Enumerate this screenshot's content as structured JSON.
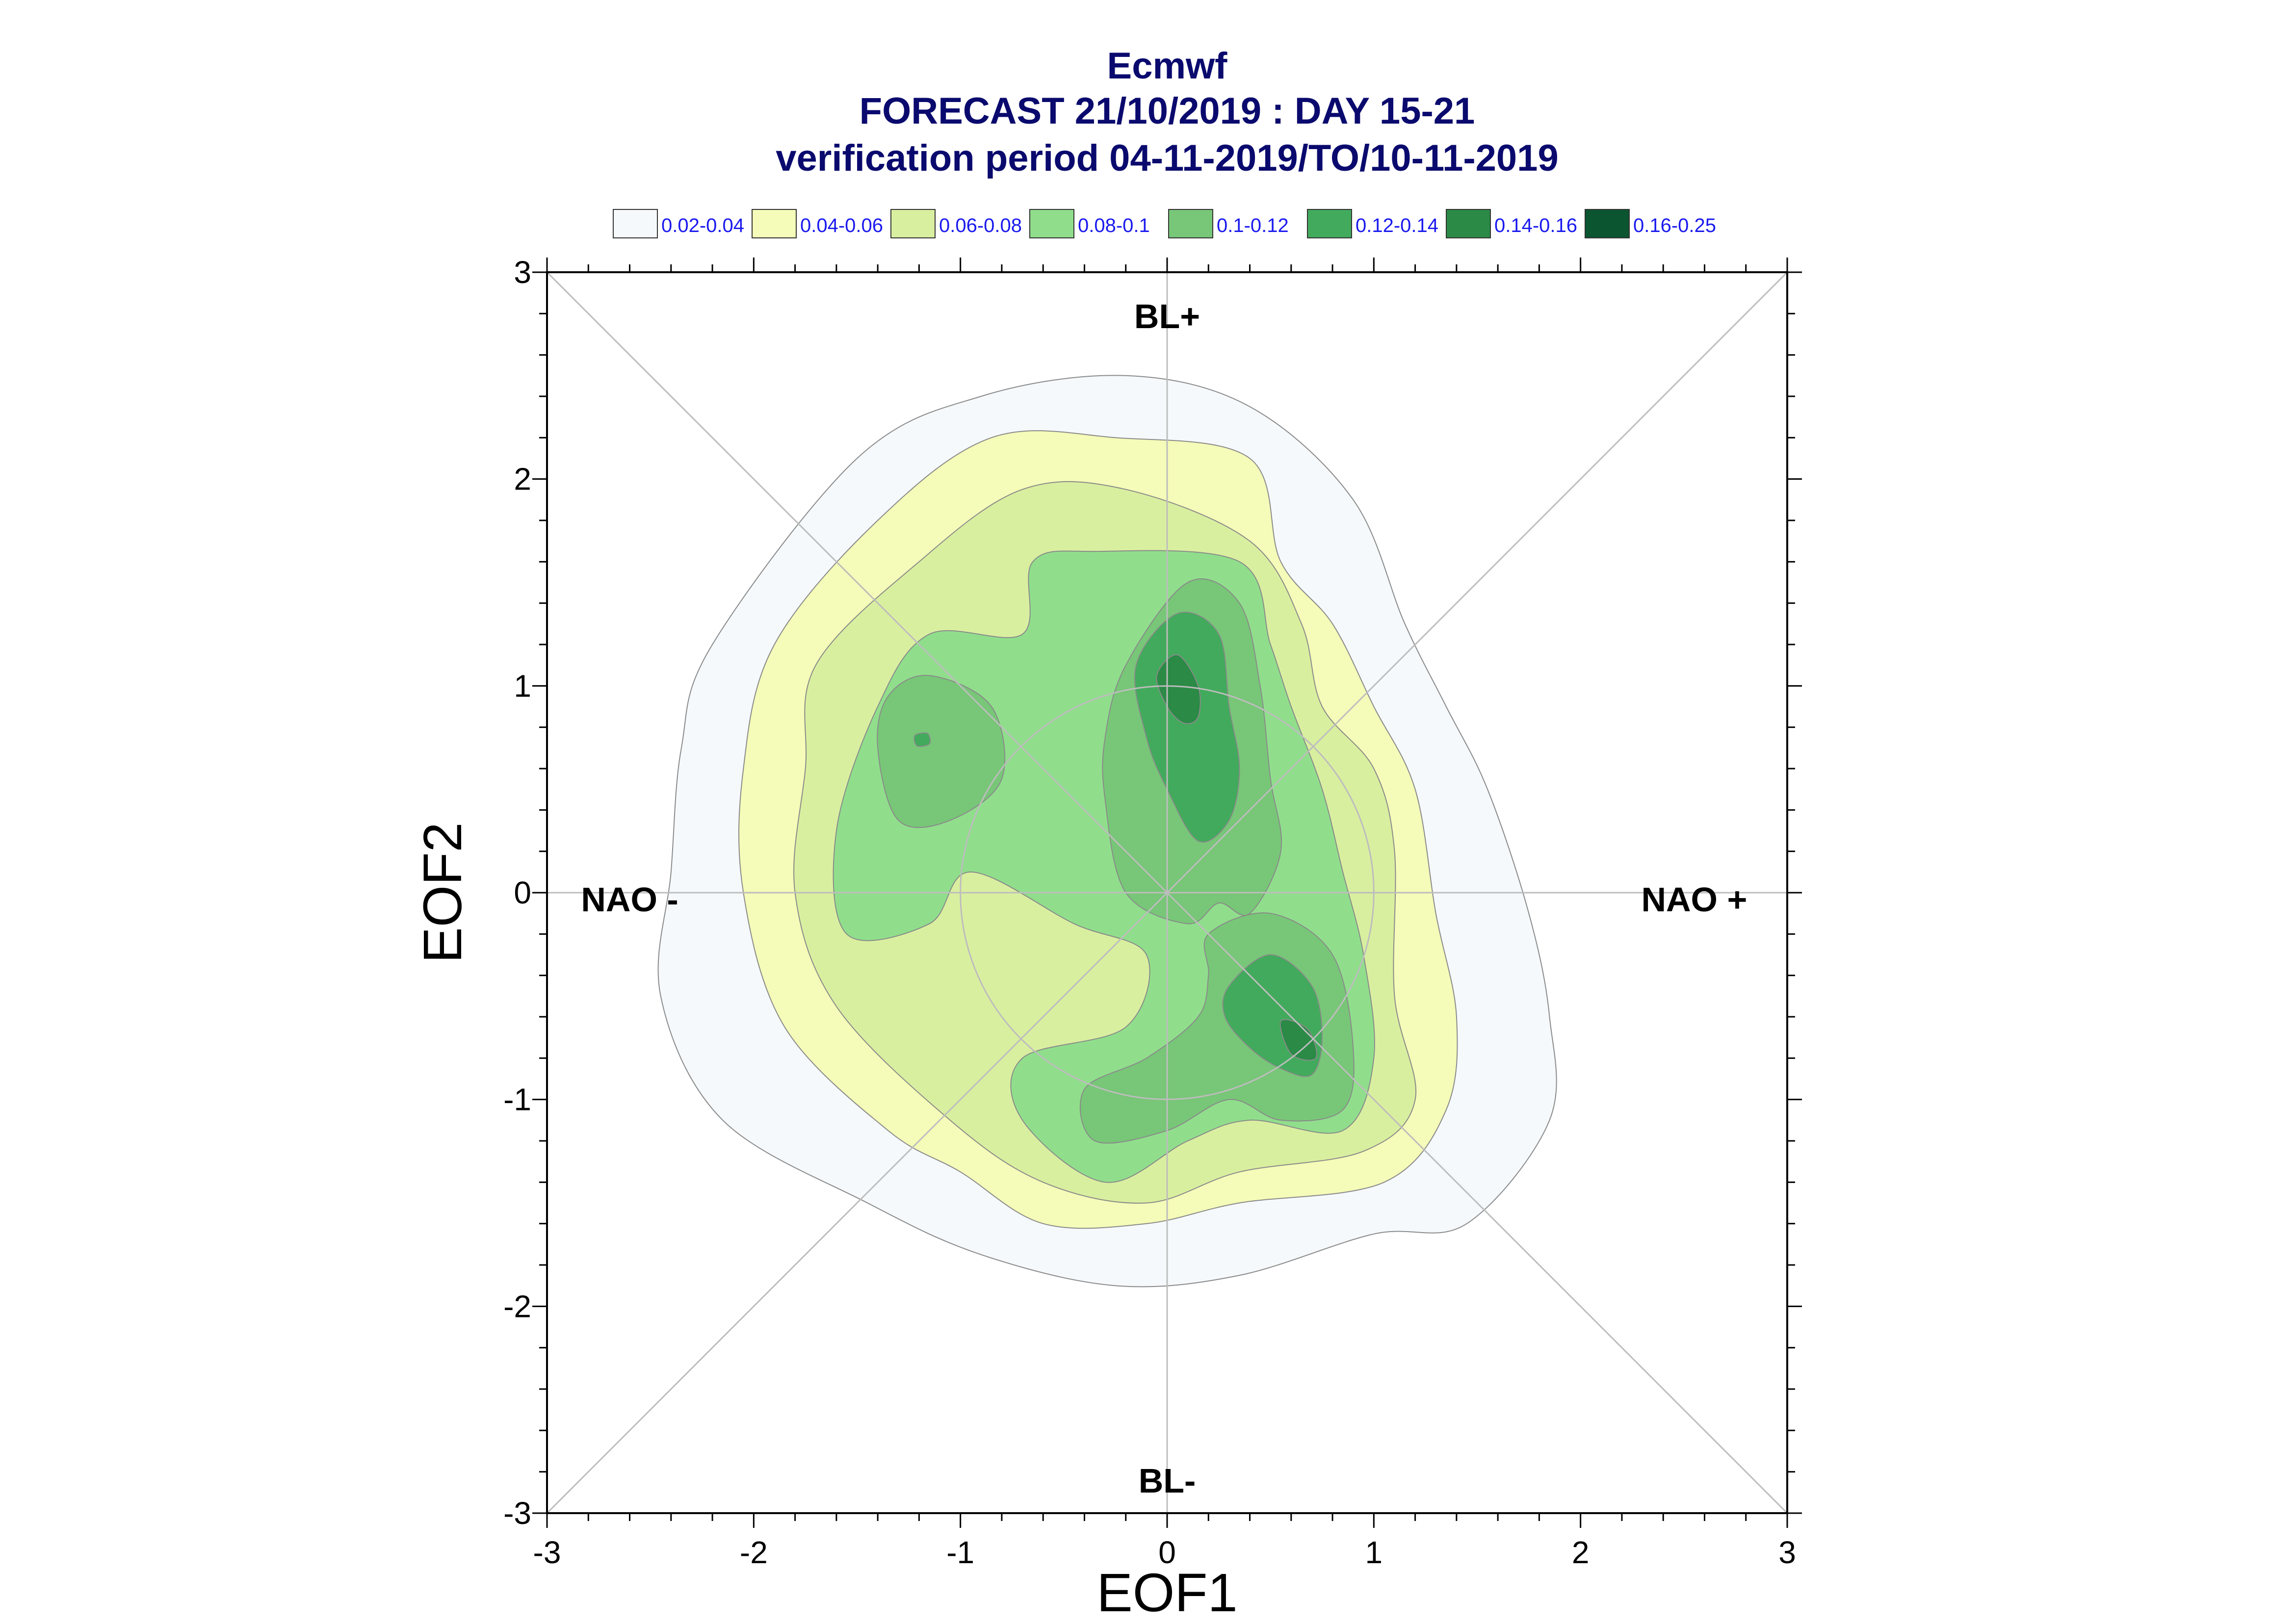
{
  "chart_data": {
    "type": "heatmap",
    "title_lines": [
      "Ecmwf",
      "FORECAST 21/10/2019 : DAY 15-21",
      "verification period 04-11-2019/TO/10-11-2019"
    ],
    "xlabel": "EOF1",
    "ylabel": "EOF2",
    "xlim": [
      -3,
      3
    ],
    "ylim": [
      -3,
      3
    ],
    "xticks": [
      -3,
      -2,
      -1,
      0,
      1,
      2,
      3
    ],
    "yticks": [
      -3,
      -2,
      -1,
      0,
      1,
      2,
      3
    ],
    "legend_placement": "top",
    "legend": [
      {
        "label": "0.02-0.04",
        "color": "#f5f9fc"
      },
      {
        "label": "0.04-0.06",
        "color": "#f5fbb8"
      },
      {
        "label": "0.06-0.08",
        "color": "#d9efa0"
      },
      {
        "label": "0.08-0.1",
        "color": "#90de8c"
      },
      {
        "label": "0.1-0.12",
        "color": "#78c678"
      },
      {
        "label": "0.12-0.14",
        "color": "#42aa5c"
      },
      {
        "label": "0.14-0.16",
        "color": "#2a8a46"
      },
      {
        "label": "0.16-0.25",
        "color": "#0b5530"
      }
    ],
    "annotations": [
      {
        "text": "BL+",
        "x": 0,
        "y": 2.73
      },
      {
        "text": "BL-",
        "x": 0,
        "y": -2.9
      },
      {
        "text": "NAO -",
        "x": -2.6,
        "y": -0.09
      },
      {
        "text": "NAO +",
        "x": 2.55,
        "y": -0.09
      }
    ],
    "reference_circle_radius": 1.0,
    "contours": [
      {
        "level": "0.02-0.04",
        "points": [
          [
            -2.2,
            1.2
          ],
          [
            -1.5,
            2.1
          ],
          [
            -0.9,
            2.4
          ],
          [
            -0.2,
            2.5
          ],
          [
            0.4,
            2.35
          ],
          [
            0.9,
            1.9
          ],
          [
            1.15,
            1.3
          ],
          [
            1.35,
            0.9
          ],
          [
            1.55,
            0.5
          ],
          [
            1.75,
            -0.1
          ],
          [
            1.85,
            -0.6
          ],
          [
            1.85,
            -1.1
          ],
          [
            1.45,
            -1.6
          ],
          [
            1.0,
            -1.65
          ],
          [
            0.35,
            -1.85
          ],
          [
            -0.25,
            -1.9
          ],
          [
            -0.9,
            -1.75
          ],
          [
            -1.45,
            -1.5
          ],
          [
            -2.15,
            -1.1
          ],
          [
            -2.45,
            -0.5
          ],
          [
            -2.4,
            0.1
          ],
          [
            -2.35,
            0.7
          ]
        ]
      },
      {
        "level": "0.04-0.06",
        "points": [
          [
            -1.9,
            1.2
          ],
          [
            -1.4,
            1.8
          ],
          [
            -0.85,
            2.2
          ],
          [
            -0.25,
            2.2
          ],
          [
            0.4,
            2.1
          ],
          [
            0.55,
            1.6
          ],
          [
            0.8,
            1.3
          ],
          [
            1.0,
            0.9
          ],
          [
            1.2,
            0.5
          ],
          [
            1.3,
            -0.1
          ],
          [
            1.4,
            -0.6
          ],
          [
            1.35,
            -1.05
          ],
          [
            1.05,
            -1.4
          ],
          [
            0.35,
            -1.5
          ],
          [
            -0.1,
            -1.6
          ],
          [
            -0.6,
            -1.6
          ],
          [
            -1.0,
            -1.35
          ],
          [
            -1.35,
            -1.15
          ],
          [
            -1.85,
            -0.65
          ],
          [
            -2.05,
            0
          ],
          [
            -2.05,
            0.6
          ]
        ]
      },
      {
        "level": "0.06-0.08",
        "points": [
          [
            -1.7,
            1.1
          ],
          [
            -1.2,
            1.6
          ],
          [
            -0.7,
            1.95
          ],
          [
            -0.2,
            1.95
          ],
          [
            0.4,
            1.7
          ],
          [
            0.65,
            1.3
          ],
          [
            0.75,
            0.9
          ],
          [
            1.0,
            0.6
          ],
          [
            1.1,
            0.2
          ],
          [
            1.1,
            -0.5
          ],
          [
            1.2,
            -1.0
          ],
          [
            0.95,
            -1.25
          ],
          [
            0.35,
            -1.35
          ],
          [
            -0.1,
            -1.5
          ],
          [
            -0.6,
            -1.4
          ],
          [
            -1.05,
            -1.1
          ],
          [
            -1.6,
            -0.55
          ],
          [
            -1.8,
            0
          ],
          [
            -1.75,
            0.6
          ]
        ]
      },
      {
        "level": "0.08-0.1",
        "points": [
          [
            -1.4,
            0.9
          ],
          [
            -1.15,
            1.25
          ],
          [
            -0.7,
            1.25
          ],
          [
            -0.65,
            1.6
          ],
          [
            -0.35,
            1.65
          ],
          [
            0.35,
            1.6
          ],
          [
            0.5,
            1.2
          ],
          [
            0.6,
            0.9
          ],
          [
            0.75,
            0.5
          ],
          [
            0.85,
            0.1
          ],
          [
            0.95,
            -0.3
          ],
          [
            1.0,
            -0.8
          ],
          [
            0.85,
            -1.15
          ],
          [
            0.4,
            -1.1
          ],
          [
            0.1,
            -1.2
          ],
          [
            -0.3,
            -1.4
          ],
          [
            -0.7,
            -1.1
          ],
          [
            -0.7,
            -0.8
          ],
          [
            -0.2,
            -0.65
          ],
          [
            -0.1,
            -0.3
          ],
          [
            -0.45,
            -0.15
          ],
          [
            -0.95,
            0.1
          ],
          [
            -1.15,
            -0.15
          ],
          [
            -1.55,
            -0.2
          ],
          [
            -1.6,
            0.3
          ]
        ]
      },
      {
        "level": "0.1-0.12",
        "points": [
          [
            -0.3,
            0.45
          ],
          [
            -0.3,
            0.75
          ],
          [
            -0.2,
            1.1
          ],
          [
            0.1,
            1.5
          ],
          [
            0.35,
            1.4
          ],
          [
            0.45,
            1.0
          ],
          [
            0.5,
            0.55
          ],
          [
            0.55,
            0.2
          ],
          [
            0.4,
            -0.1
          ],
          [
            0.25,
            -0.05
          ],
          [
            0.1,
            -0.15
          ],
          [
            -0.2,
            0
          ]
        ]
      },
      {
        "level": "0.1-0.12",
        "points": [
          [
            -1.4,
            0.7
          ],
          [
            -1.35,
            0.95
          ],
          [
            -1.15,
            1.05
          ],
          [
            -0.85,
            0.9
          ],
          [
            -0.8,
            0.55
          ],
          [
            -1.05,
            0.35
          ],
          [
            -1.3,
            0.35
          ]
        ]
      },
      {
        "level": "0.1-0.12",
        "points": [
          [
            0.2,
            -0.2
          ],
          [
            0.5,
            -0.1
          ],
          [
            0.8,
            -0.3
          ],
          [
            0.9,
            -0.75
          ],
          [
            0.85,
            -1.05
          ],
          [
            0.55,
            -1.1
          ],
          [
            0.3,
            -1.0
          ],
          [
            0.0,
            -1.15
          ],
          [
            -0.35,
            -1.2
          ],
          [
            -0.4,
            -0.95
          ],
          [
            -0.1,
            -0.8
          ],
          [
            0.15,
            -0.6
          ],
          [
            0.2,
            -0.4
          ]
        ]
      },
      {
        "level": "0.12-0.14",
        "points": [
          [
            -0.15,
            1.1
          ],
          [
            0.05,
            1.35
          ],
          [
            0.25,
            1.25
          ],
          [
            0.3,
            0.9
          ],
          [
            0.35,
            0.6
          ],
          [
            0.3,
            0.35
          ],
          [
            0.15,
            0.25
          ],
          [
            0.0,
            0.5
          ],
          [
            -0.1,
            0.75
          ]
        ]
      },
      {
        "level": "0.12-0.14",
        "points": [
          [
            0.3,
            -0.45
          ],
          [
            0.5,
            -0.3
          ],
          [
            0.7,
            -0.45
          ],
          [
            0.75,
            -0.7
          ],
          [
            0.7,
            -0.88
          ],
          [
            0.55,
            -0.85
          ],
          [
            0.4,
            -0.75
          ],
          [
            0.28,
            -0.6
          ]
        ]
      },
      {
        "level": "0.12-0.14",
        "points": [
          [
            -1.22,
            0.76
          ],
          [
            -1.16,
            0.77
          ],
          [
            -1.15,
            0.72
          ],
          [
            -1.21,
            0.71
          ]
        ]
      },
      {
        "level": "0.14-0.16",
        "points": [
          [
            -0.05,
            1.05
          ],
          [
            0.05,
            1.15
          ],
          [
            0.15,
            1.0
          ],
          [
            0.15,
            0.85
          ],
          [
            0.08,
            0.82
          ],
          [
            0.0,
            0.9
          ]
        ]
      },
      {
        "level": "0.14-0.16",
        "points": [
          [
            0.55,
            -0.62
          ],
          [
            0.68,
            -0.66
          ],
          [
            0.72,
            -0.8
          ],
          [
            0.6,
            -0.78
          ]
        ]
      }
    ]
  }
}
